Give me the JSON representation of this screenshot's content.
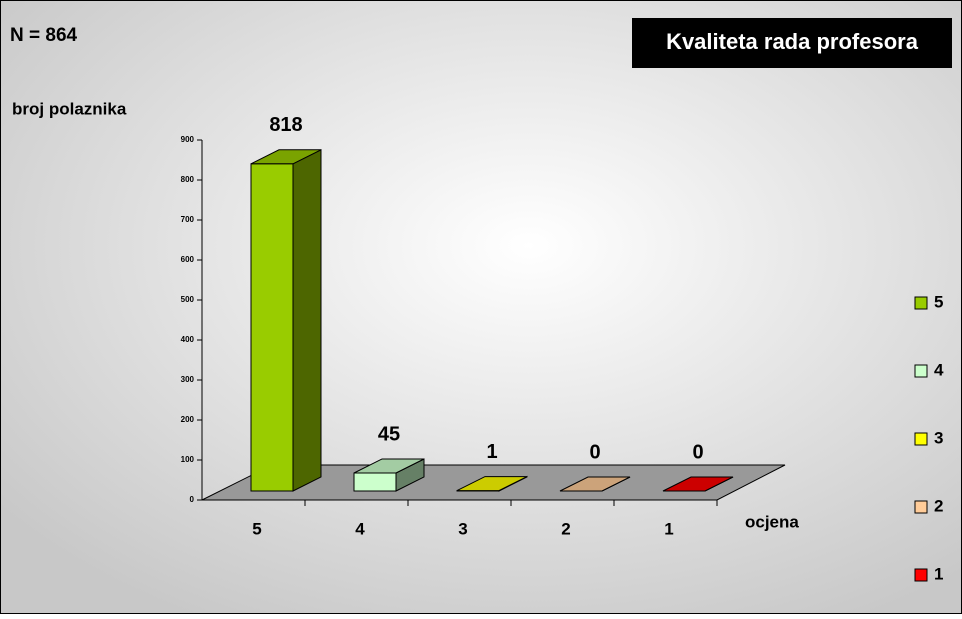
{
  "chart_data": {
    "type": "bar3d",
    "title": "Kvaliteta rada profesora",
    "annotation": "N = 864",
    "y_label": "broj polaznika",
    "x_label": "ocjena",
    "categories": [
      "5",
      "4",
      "3",
      "2",
      "1"
    ],
    "values": [
      818,
      45,
      1,
      0,
      0
    ],
    "colors": [
      "#99cc00",
      "#ccffcc",
      "#ffff00",
      "#ffcc99",
      "#ff0000"
    ],
    "ylim": [
      0,
      900
    ],
    "yticks": [
      0,
      100,
      200,
      300,
      400,
      500,
      600,
      700,
      800,
      900
    ],
    "legend": "right"
  }
}
